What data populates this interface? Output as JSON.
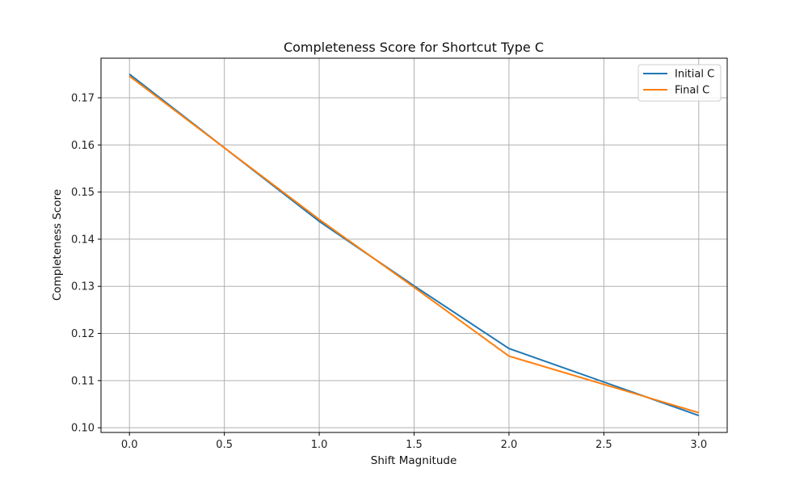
{
  "chart_data": {
    "type": "line",
    "title": "Completeness Score for Shortcut Type C",
    "xlabel": "Shift Magnitude",
    "ylabel": "Completeness Score",
    "x": [
      0.0,
      1.0,
      1.5,
      2.0,
      3.0
    ],
    "xlim": [
      -0.15,
      3.15
    ],
    "ylim": [
      0.099,
      0.1784
    ],
    "xticks": [
      0.0,
      0.5,
      1.0,
      1.5,
      2.0,
      2.5,
      3.0
    ],
    "xtick_labels": [
      "0.0",
      "0.5",
      "1.0",
      "1.5",
      "2.0",
      "2.5",
      "3.0"
    ],
    "yticks": [
      0.1,
      0.11,
      0.12,
      0.13,
      0.14,
      0.15,
      0.16,
      0.17
    ],
    "ytick_labels": [
      "0.10",
      "0.11",
      "0.12",
      "0.13",
      "0.14",
      "0.15",
      "0.16",
      "0.17"
    ],
    "grid": true,
    "legend_position": "top-right",
    "series": [
      {
        "name": "Initial C",
        "color": "#1f77b4",
        "values": [
          0.175,
          0.1438,
          0.1301,
          0.1168,
          0.1026
        ]
      },
      {
        "name": "Final C",
        "color": "#ff7f0e",
        "values": [
          0.1746,
          0.1442,
          0.1298,
          0.1152,
          0.1032
        ]
      }
    ]
  }
}
